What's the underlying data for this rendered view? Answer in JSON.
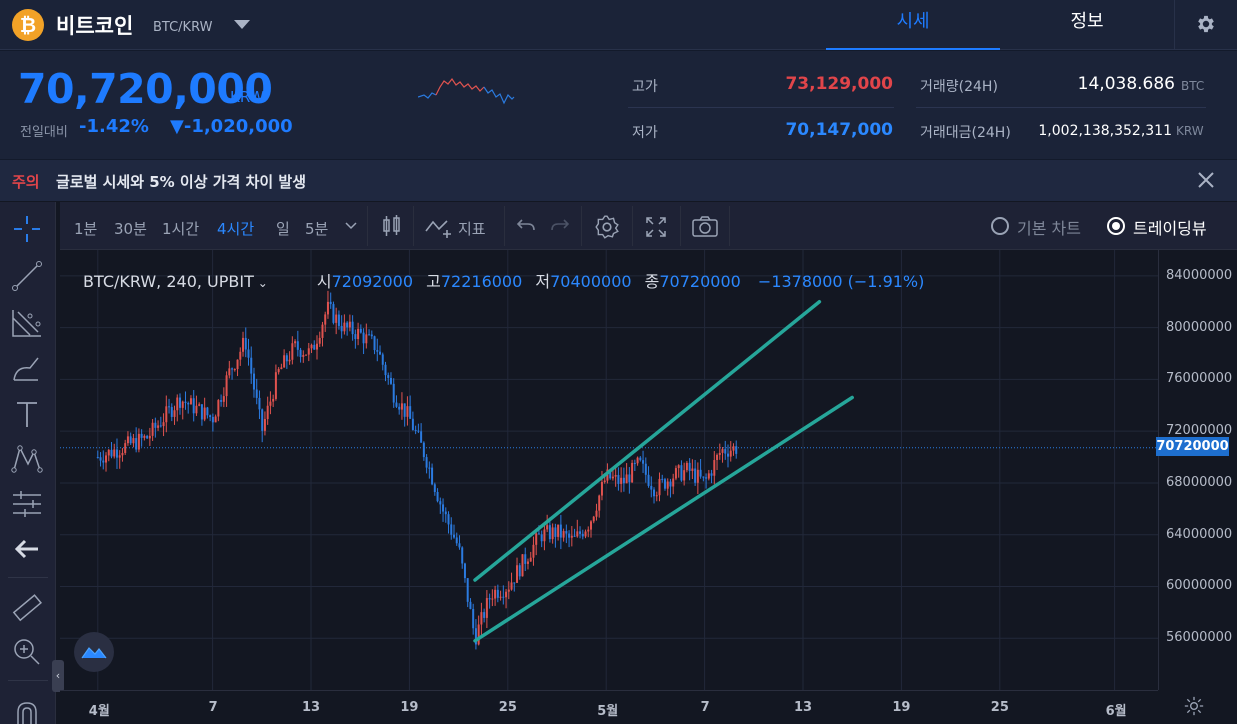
{
  "header": {
    "coin_logo": "₿",
    "coin_name": "비트코인",
    "pair": "BTC/KRW",
    "tabs": [
      {
        "label": "시세",
        "active": true
      },
      {
        "label": "정보",
        "active": false
      }
    ]
  },
  "price": {
    "current": "70,720,000",
    "unit": "KRW",
    "change_label": "전일대비",
    "change_rate": "-1.42%",
    "change_amount": "▼-1,020,000"
  },
  "stats": {
    "high_label": "고가",
    "high_value": "73,129,000",
    "low_label": "저가",
    "low_value": "70,147,000",
    "volume_label": "거래량(24H)",
    "volume_value": "14,038.686",
    "volume_unit": "BTC",
    "amount_label": "거래대금(24H)",
    "amount_value": "1,002,138,352,311",
    "amount_unit": "KRW"
  },
  "notice": {
    "tag": "주의",
    "text": "글로벌 시세와 5% 이상 가격 차이 발생"
  },
  "toolbar": {
    "intervals": [
      {
        "label": "1분",
        "active": false
      },
      {
        "label": "30분",
        "active": false
      },
      {
        "label": "1시간",
        "active": false
      },
      {
        "label": "4시간",
        "active": true
      },
      {
        "label": "일",
        "active": false
      },
      {
        "label": "5분",
        "active": false
      }
    ],
    "indicator_label": "지표",
    "chart_options": [
      {
        "label": "기본 차트",
        "selected": false
      },
      {
        "label": "트레이딩뷰",
        "selected": true
      }
    ]
  },
  "legend": {
    "symbol": "BTC/KRW, 240, UPBIT",
    "open_label": "시",
    "open": "72092000",
    "high_label": "고",
    "high": "72216000",
    "low_label": "저",
    "low": "70400000",
    "close_label": "종",
    "close": "70720000",
    "change": "−1378000 (−1.91%)"
  },
  "colors": {
    "up": "#e0534f",
    "down": "#2b7be0",
    "trendline": "#26a69a",
    "accent": "#1e7bff"
  },
  "chart_data": {
    "type": "candlestick",
    "y_ticks": [
      "84000000",
      "80000000",
      "76000000",
      "72000000",
      "68000000",
      "64000000",
      "60000000",
      "56000000"
    ],
    "current_price_label": "70720000",
    "x_ticks": [
      "4월",
      "7",
      "13",
      "19",
      "25",
      "5월",
      "7",
      "13",
      "19",
      "25",
      "6월"
    ],
    "ylim": [
      52000000,
      86000000
    ],
    "trendlines": [
      {
        "name": "upper",
        "from": [
          "2021-04-23",
          60500000
        ],
        "to": [
          "2021-05-14",
          82000000
        ]
      },
      {
        "name": "lower",
        "from": [
          "2021-04-23",
          55800000
        ],
        "to": [
          "2021-05-16",
          74600000
        ]
      }
    ],
    "price_path": [
      [
        "2021-03-31",
        70000000
      ],
      [
        "2021-04-03",
        71500000
      ],
      [
        "2021-04-05",
        74500000
      ],
      [
        "2021-04-07",
        73000000
      ],
      [
        "2021-04-08",
        76500000
      ],
      [
        "2021-04-09",
        79000000
      ],
      [
        "2021-04-10",
        72000000
      ],
      [
        "2021-04-11",
        76500000
      ],
      [
        "2021-04-12",
        78500000
      ],
      [
        "2021-04-13",
        78000000
      ],
      [
        "2021-04-14",
        81500000
      ],
      [
        "2021-04-15",
        80000000
      ],
      [
        "2021-04-16",
        79500000
      ],
      [
        "2021-04-17",
        78500000
      ],
      [
        "2021-04-18",
        75000000
      ],
      [
        "2021-04-19",
        73000000
      ],
      [
        "2021-04-20",
        70000000
      ],
      [
        "2021-04-21",
        66000000
      ],
      [
        "2021-04-22",
        63000000
      ],
      [
        "2021-04-23",
        56000000
      ],
      [
        "2021-04-24",
        59500000
      ],
      [
        "2021-04-25",
        60000000
      ],
      [
        "2021-04-26",
        62000000
      ],
      [
        "2021-04-27",
        64000000
      ],
      [
        "2021-04-28",
        64200000
      ],
      [
        "2021-04-29",
        63500000
      ],
      [
        "2021-04-30",
        65000000
      ],
      [
        "2021-05-01",
        68500000
      ],
      [
        "2021-05-02",
        68000000
      ],
      [
        "2021-05-03",
        69500000
      ],
      [
        "2021-05-04",
        67500000
      ],
      [
        "2021-05-05",
        68500000
      ],
      [
        "2021-05-06",
        69000000
      ],
      [
        "2021-05-07",
        68000000
      ],
      [
        "2021-05-08",
        70500000
      ],
      [
        "2021-05-09",
        70720000
      ]
    ]
  }
}
